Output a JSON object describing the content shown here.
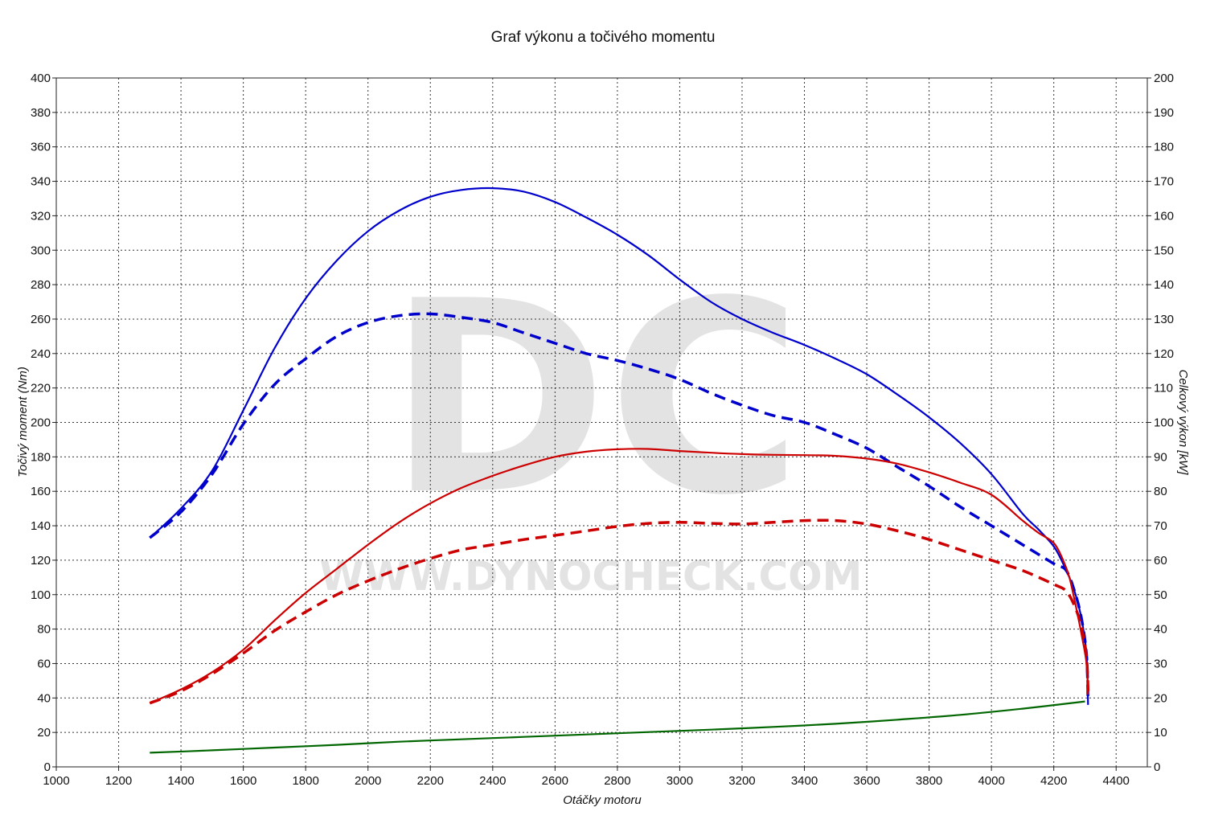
{
  "chart_data": {
    "type": "line",
    "title": "Graf výkonu a točivého momentu",
    "xlabel": "Otáčky motoru",
    "ylabel_left": "Točivý moment (Nm)",
    "ylabel_right": "Celkový výkon [kW]",
    "xlim": [
      1000,
      4500
    ],
    "ylim_left": [
      0,
      400
    ],
    "ylim_right": [
      0,
      200
    ],
    "x_ticks": [
      1000,
      1200,
      1400,
      1600,
      1800,
      2000,
      2200,
      2400,
      2600,
      2800,
      3000,
      3200,
      3400,
      3600,
      3800,
      4000,
      4200,
      4400
    ],
    "y_ticks_left": [
      0,
      20,
      40,
      60,
      80,
      100,
      120,
      140,
      160,
      180,
      200,
      220,
      240,
      260,
      280,
      300,
      320,
      340,
      360,
      380,
      400
    ],
    "y_ticks_right": [
      0,
      10,
      20,
      30,
      40,
      50,
      60,
      70,
      80,
      90,
      100,
      110,
      120,
      130,
      140,
      150,
      160,
      170,
      180,
      190,
      200
    ],
    "grid": true,
    "watermark": {
      "logo": "DC",
      "url": "WWW.DYNOCHECK.COM"
    },
    "series": [
      {
        "axis": "left",
        "color": "#0000cc",
        "style": "solid",
        "x": [
          1300,
          1400,
          1500,
          1600,
          1700,
          1800,
          1900,
          2000,
          2100,
          2200,
          2300,
          2400,
          2500,
          2600,
          2700,
          2800,
          2900,
          3000,
          3100,
          3200,
          3300,
          3400,
          3500,
          3600,
          3700,
          3800,
          3900,
          4000,
          4100,
          4150,
          4200,
          4230,
          4250,
          4270,
          4290,
          4305,
          4310
        ],
        "y": [
          133,
          150,
          172,
          207,
          243,
          272,
          294,
          311,
          323,
          331,
          335,
          336,
          334,
          328,
          319,
          309,
          297,
          283,
          270,
          260,
          252,
          245,
          237,
          228,
          216,
          203,
          188,
          170,
          147,
          138,
          128,
          118,
          110,
          100,
          85,
          65,
          36
        ]
      },
      {
        "axis": "left",
        "color": "#0000cc",
        "style": "dashed",
        "x": [
          1300,
          1400,
          1500,
          1600,
          1700,
          1800,
          1900,
          2000,
          2100,
          2200,
          2300,
          2400,
          2500,
          2600,
          2700,
          2800,
          2900,
          3000,
          3100,
          3200,
          3300,
          3400,
          3500,
          3600,
          3700,
          3800,
          3900,
          4000,
          4100,
          4200,
          4240,
          4270,
          4290,
          4305,
          4310
        ],
        "y": [
          133,
          148,
          170,
          199,
          222,
          237,
          250,
          258,
          262,
          263,
          261,
          258,
          252,
          246,
          240,
          236,
          231,
          225,
          217,
          210,
          204,
          200,
          193,
          185,
          174,
          163,
          151,
          140,
          129,
          118,
          114,
          100,
          85,
          65,
          38
        ]
      },
      {
        "axis": "right",
        "color": "#cc0000",
        "style": "solid",
        "x": [
          1300,
          1400,
          1500,
          1600,
          1700,
          1800,
          1900,
          2000,
          2100,
          2200,
          2300,
          2400,
          2500,
          2600,
          2700,
          2800,
          2900,
          3000,
          3100,
          3200,
          3300,
          3400,
          3500,
          3600,
          3700,
          3800,
          3900,
          4000,
          4100,
          4150,
          4200,
          4230,
          4250,
          4270,
          4290,
          4305,
          4310
        ],
        "y": [
          18.5,
          22.5,
          27.5,
          34,
          42.5,
          50.5,
          57.5,
          64.5,
          71,
          76.5,
          81,
          84.5,
          87.5,
          90,
          91.5,
          92.2,
          92.3,
          91.7,
          91.2,
          90.8,
          90.6,
          90.5,
          90.3,
          89.5,
          88,
          85.5,
          82.5,
          79,
          71.5,
          68,
          65,
          60,
          55,
          47,
          38,
          30,
          21
        ]
      },
      {
        "axis": "right",
        "color": "#cc0000",
        "style": "dashed",
        "x": [
          1300,
          1400,
          1500,
          1600,
          1700,
          1800,
          1900,
          2000,
          2100,
          2200,
          2300,
          2400,
          2500,
          2600,
          2700,
          2800,
          2900,
          3000,
          3100,
          3200,
          3300,
          3400,
          3500,
          3600,
          3700,
          3800,
          3900,
          4000,
          4100,
          4200,
          4240,
          4270,
          4290,
          4305,
          4310
        ],
        "y": [
          18.5,
          22,
          27,
          33,
          39.5,
          45,
          50,
          54,
          57.5,
          60.5,
          63,
          64.5,
          66,
          67.2,
          68.5,
          69.8,
          70.7,
          71,
          70.7,
          70.5,
          71,
          71.5,
          71.5,
          70.5,
          68.5,
          66,
          63,
          60,
          57,
          53,
          51,
          46,
          40,
          32,
          22
        ]
      },
      {
        "axis": "right",
        "color": "#006600",
        "style": "solid",
        "x": [
          1300,
          1500,
          1700,
          1900,
          2100,
          2300,
          2500,
          2700,
          2900,
          3100,
          3300,
          3500,
          3700,
          3900,
          4100,
          4300
        ],
        "y": [
          4.1,
          4.8,
          5.6,
          6.4,
          7.3,
          8.0,
          8.7,
          9.4,
          10.1,
          10.8,
          11.6,
          12.5,
          13.7,
          15.1,
          16.9,
          19.0
        ]
      }
    ]
  }
}
